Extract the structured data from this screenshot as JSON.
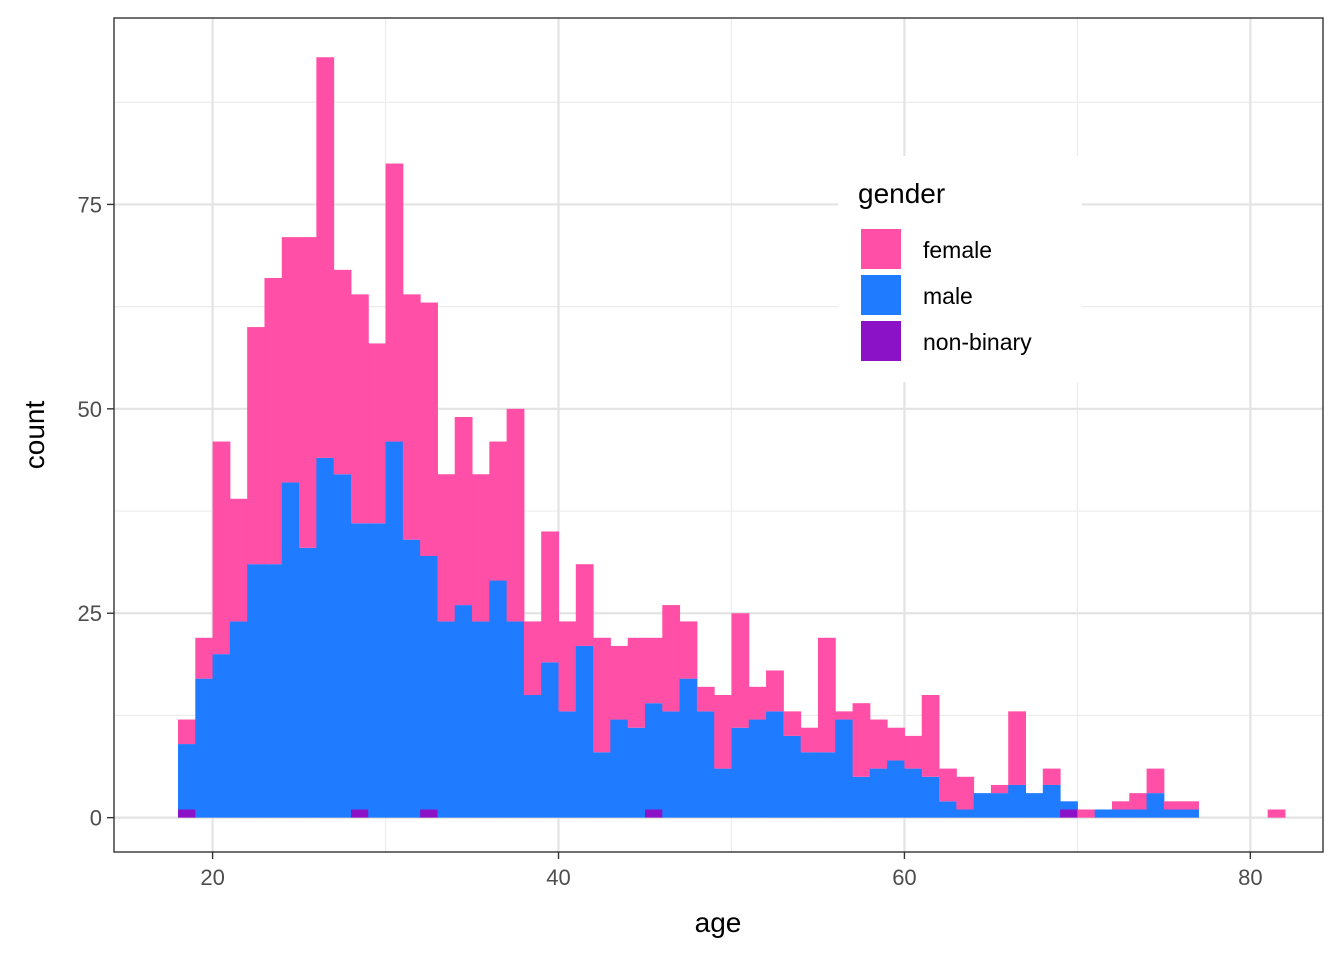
{
  "chart_data": {
    "type": "bar",
    "stacked": true,
    "xlabel": "age",
    "ylabel": "count",
    "xlim": [
      14.3,
      84.2
    ],
    "ylim": [
      -4.2,
      97.8
    ],
    "x_ticks": [
      20,
      40,
      60,
      80
    ],
    "y_ticks": [
      0,
      25,
      50,
      75
    ],
    "grid": true,
    "bin_width": 1,
    "bin_starts": [
      18,
      19,
      20,
      21,
      22,
      23,
      24,
      25,
      26,
      27,
      28,
      29,
      30,
      31,
      32,
      33,
      34,
      35,
      36,
      37,
      38,
      39,
      40,
      41,
      42,
      43,
      44,
      45,
      46,
      47,
      48,
      49,
      50,
      51,
      52,
      53,
      54,
      55,
      56,
      57,
      58,
      59,
      60,
      61,
      62,
      63,
      64,
      65,
      66,
      67,
      68,
      69,
      70,
      71,
      72,
      73,
      74,
      75,
      76,
      77,
      78,
      79,
      80,
      81
    ],
    "legend": {
      "title": "gender",
      "position": "inside-top-right",
      "entries": [
        "female",
        "male",
        "non-binary"
      ]
    },
    "series": [
      {
        "name": "non-binary",
        "color": "#8B12C6",
        "values": [
          1,
          0,
          0,
          0,
          0,
          0,
          0,
          0,
          0,
          0,
          1,
          0,
          0,
          0,
          1,
          0,
          0,
          0,
          0,
          0,
          0,
          0,
          0,
          0,
          0,
          0,
          0,
          1,
          0,
          0,
          0,
          0,
          0,
          0,
          0,
          0,
          0,
          0,
          0,
          0,
          0,
          0,
          0,
          0,
          0,
          0,
          0,
          0,
          0,
          0,
          0,
          1,
          0,
          0,
          0,
          0,
          0,
          0,
          0,
          0,
          0,
          0,
          0,
          0
        ]
      },
      {
        "name": "male",
        "color": "#1F7BFF",
        "values": [
          8,
          17,
          20,
          24,
          31,
          31,
          41,
          33,
          44,
          42,
          35,
          36,
          46,
          34,
          31,
          24,
          26,
          24,
          29,
          24,
          15,
          19,
          13,
          21,
          8,
          12,
          11,
          13,
          13,
          17,
          13,
          6,
          11,
          12,
          13,
          10,
          8,
          8,
          12,
          5,
          6,
          7,
          6,
          5,
          2,
          1,
          3,
          3,
          4,
          3,
          4,
          1,
          0,
          1,
          1,
          1,
          3,
          1,
          1,
          0,
          0,
          0,
          0,
          0
        ]
      },
      {
        "name": "female",
        "color": "#FF4FA6",
        "values": [
          3,
          5,
          26,
          15,
          29,
          35,
          30,
          38,
          49,
          25,
          28,
          22,
          34,
          30,
          31,
          18,
          23,
          18,
          17,
          26,
          9,
          16,
          11,
          10,
          14,
          9,
          11,
          8,
          13,
          7,
          3,
          9,
          14,
          4,
          5,
          3,
          3,
          14,
          1,
          9,
          6,
          4,
          4,
          10,
          4,
          4,
          0,
          1,
          9,
          0,
          2,
          0,
          1,
          0,
          1,
          2,
          3,
          1,
          1,
          0,
          0,
          0,
          0,
          1
        ]
      }
    ]
  }
}
